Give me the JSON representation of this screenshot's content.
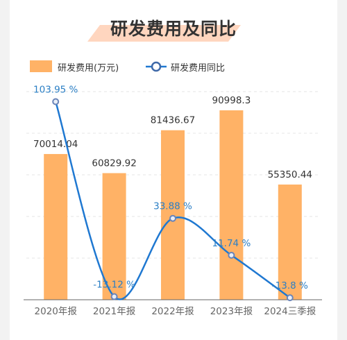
{
  "title": "研发费用及同比",
  "legend": {
    "bar": "研发费用(万元)",
    "line": "研发费用同比"
  },
  "colors": {
    "bar": "#ffb266",
    "line": "#1f78d1",
    "point_fill": "#e8eef8",
    "point_stroke": "#6a84b8",
    "title_band": "#ffd6bf",
    "axis": "#666666",
    "grid": "#e4e4e4",
    "pct_text": "#2b7fc5"
  },
  "chart_data": {
    "type": "bar",
    "categories": [
      "2020年报",
      "2021年报",
      "2022年报",
      "2023年报",
      "2024三季报"
    ],
    "series": [
      {
        "name": "研发费用(万元)",
        "type": "bar",
        "values": [
          70014.04,
          60829.92,
          81436.67,
          90998.3,
          55350.44
        ],
        "labels": [
          "70014.04",
          "60829.92",
          "81436.67",
          "90998.3",
          "55350.44"
        ]
      },
      {
        "name": "研发费用同比",
        "type": "line",
        "smooth": true,
        "values": [
          103.95,
          -13.12,
          33.88,
          11.74,
          -13.8
        ],
        "labels": [
          "103.95 %",
          "-13.12 %",
          "33.88 %",
          "11.74 %",
          "-13.8 %"
        ]
      }
    ],
    "ylim_bar": [
      0,
      100000
    ],
    "ylim_line": [
      -15,
      110
    ],
    "grid": true,
    "legend_position": "top-left"
  }
}
